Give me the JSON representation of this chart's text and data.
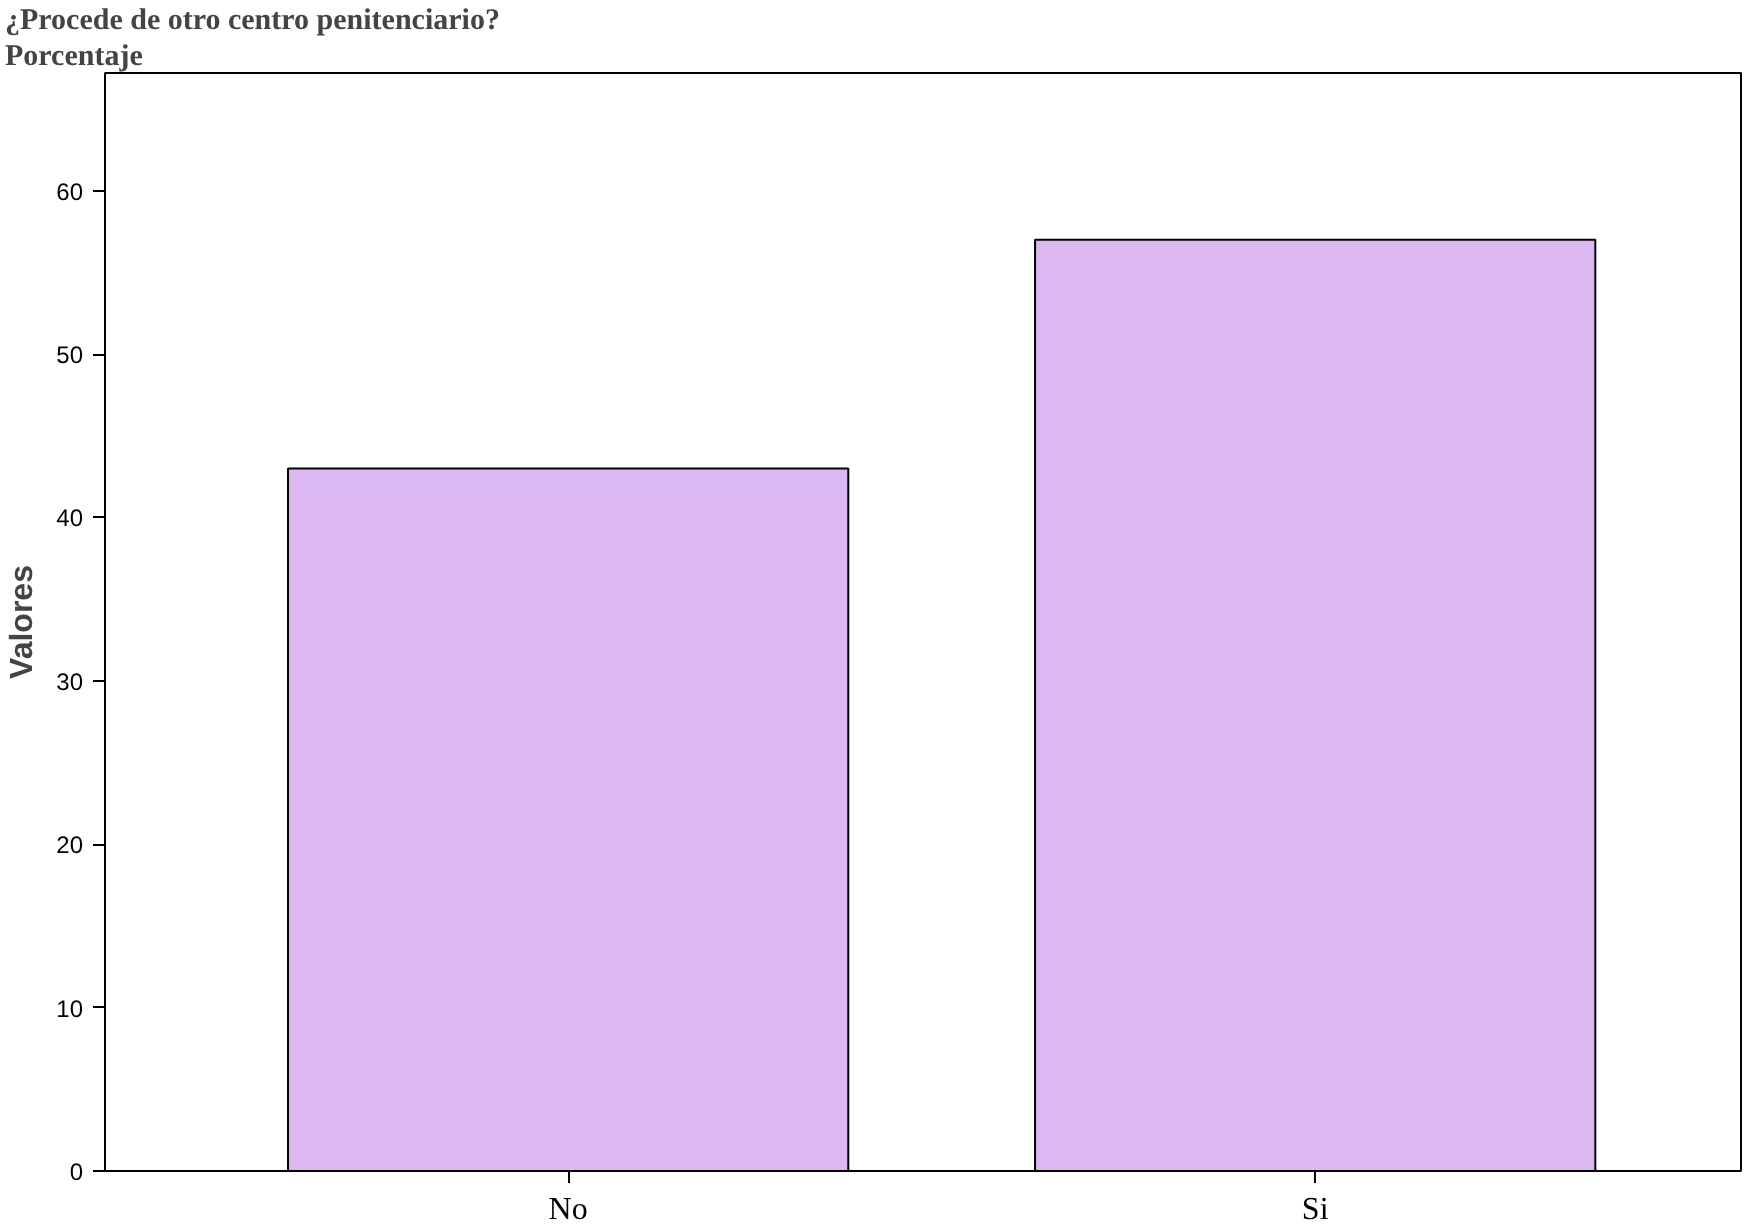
{
  "chart_data": {
    "type": "bar",
    "title": "¿Procede de otro centro penitenciario?",
    "subtitle": "Porcentaje",
    "ylabel": "Valores",
    "categories": [
      "No",
      "Si"
    ],
    "values": [
      43,
      57
    ],
    "color": "#dcb8f2",
    "ylim": [
      0,
      67.2
    ],
    "yticks": [
      0,
      10,
      20,
      30,
      40,
      50,
      60
    ],
    "grid": false
  }
}
